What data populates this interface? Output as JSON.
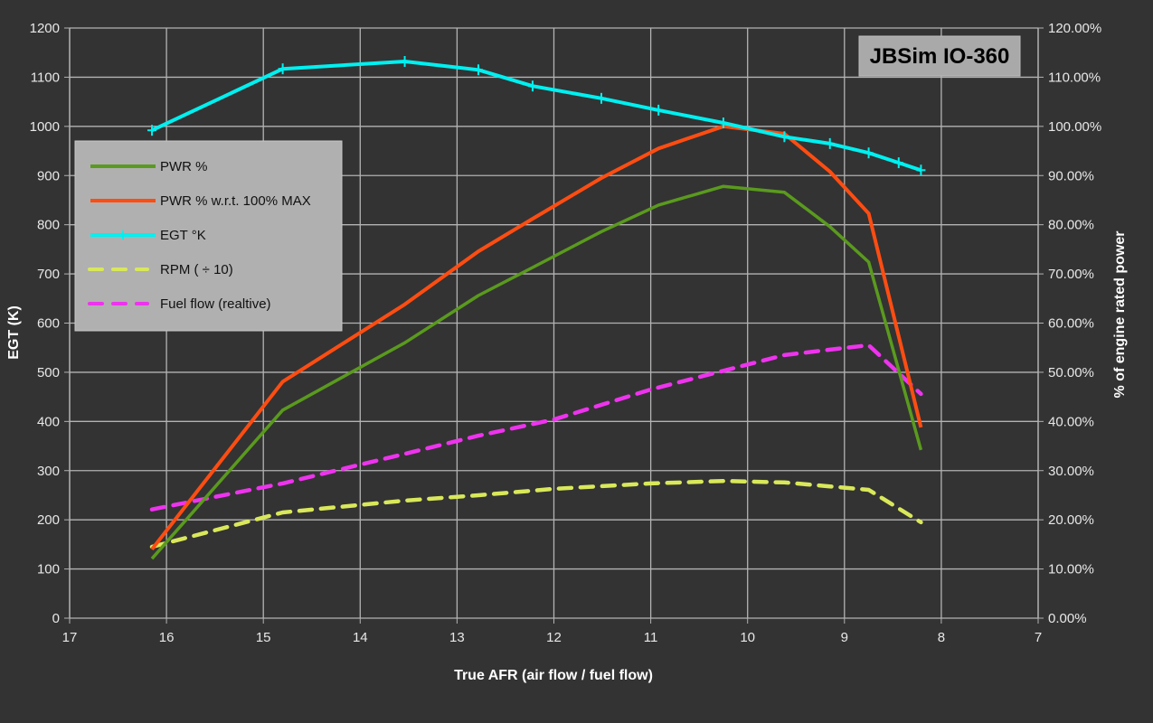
{
  "chart_data": {
    "type": "line",
    "title": "JBSim IO-360",
    "xlabel": "True AFR (air flow / fuel flow)",
    "ylabel": "EGT (K)",
    "ylabel_right": "% of engine rated power",
    "xlim": [
      17,
      7
    ],
    "x_reversed": true,
    "ylim": [
      0,
      1200
    ],
    "ylim_right": [
      0,
      1.2
    ],
    "x_ticks": [
      "17",
      "16",
      "15",
      "14",
      "13",
      "12",
      "11",
      "10",
      "9",
      "8",
      "7"
    ],
    "y_ticks": [
      "0",
      "100",
      "200",
      "300",
      "400",
      "500",
      "600",
      "700",
      "800",
      "900",
      "1000",
      "1100",
      "1200"
    ],
    "y_right_ticks": [
      "0.00%",
      "10.00%",
      "20.00%",
      "30.00%",
      "40.00%",
      "50.00%",
      "60.00%",
      "70.00%",
      "80.00%",
      "90.00%",
      "100.00%",
      "110.00%",
      "120.00%"
    ],
    "grid": true,
    "legend_position": "upper-left",
    "series": [
      {
        "name": "PWR %",
        "color": "#5a9a1e",
        "style": "solid",
        "axis": "right",
        "x": [
          16.15,
          14.8,
          13.54,
          12.78,
          12.22,
          11.51,
          10.92,
          10.25,
          9.62,
          9.15,
          8.75,
          8.21
        ],
        "values": [
          12.1,
          42.3,
          56.0,
          65.6,
          71.3,
          78.6,
          84.0,
          87.8,
          86.6,
          79.6,
          72.4,
          34.2
        ]
      },
      {
        "name": "PWR % w.r.t. 100% MAX",
        "color": "#ff4d12",
        "style": "solid",
        "axis": "right",
        "x": [
          16.15,
          14.8,
          13.54,
          12.78,
          12.22,
          11.51,
          10.92,
          10.25,
          9.62,
          9.15,
          8.75,
          8.21
        ],
        "values": [
          14.0,
          48.1,
          63.8,
          74.6,
          81.2,
          89.5,
          95.5,
          100.0,
          98.5,
          90.8,
          82.3,
          38.8
        ]
      },
      {
        "name": "EGT °K",
        "color": "#00f0f0",
        "style": "solid-with-markers",
        "axis": "left",
        "x": [
          16.15,
          14.8,
          13.54,
          12.78,
          12.22,
          11.51,
          10.92,
          10.25,
          9.62,
          9.15,
          8.75,
          8.44,
          8.21
        ],
        "values": [
          992,
          1117,
          1132,
          1115,
          1082,
          1057,
          1033,
          1007,
          979,
          965,
          946,
          926,
          911
        ]
      },
      {
        "name": "RPM ( ÷ 10)",
        "color": "#d9e85a",
        "style": "dashed",
        "axis": "left",
        "x": [
          16.15,
          14.8,
          13.54,
          12.78,
          12.0,
          11.0,
          10.25,
          9.62,
          9.15,
          8.75,
          8.21
        ],
        "values": [
          145,
          215,
          239,
          250,
          263,
          274,
          279,
          276,
          268,
          261,
          195
        ]
      },
      {
        "name": "Fuel flow (realtive)",
        "color": "#ee33ee",
        "style": "dashed",
        "axis": "left",
        "x": [
          16.15,
          14.8,
          13.54,
          12.78,
          12.0,
          11.0,
          10.25,
          9.62,
          9.15,
          8.75,
          8.21
        ],
        "values": [
          221,
          274,
          334,
          371,
          404,
          465,
          503,
          535,
          546,
          555,
          456
        ]
      }
    ]
  },
  "legend": {
    "items": [
      {
        "label": "PWR %"
      },
      {
        "label": "PWR % w.r.t. 100% MAX"
      },
      {
        "label": "EGT °K"
      },
      {
        "label": "RPM ( ÷ 10)"
      },
      {
        "label": "Fuel flow (realtive)"
      }
    ]
  }
}
